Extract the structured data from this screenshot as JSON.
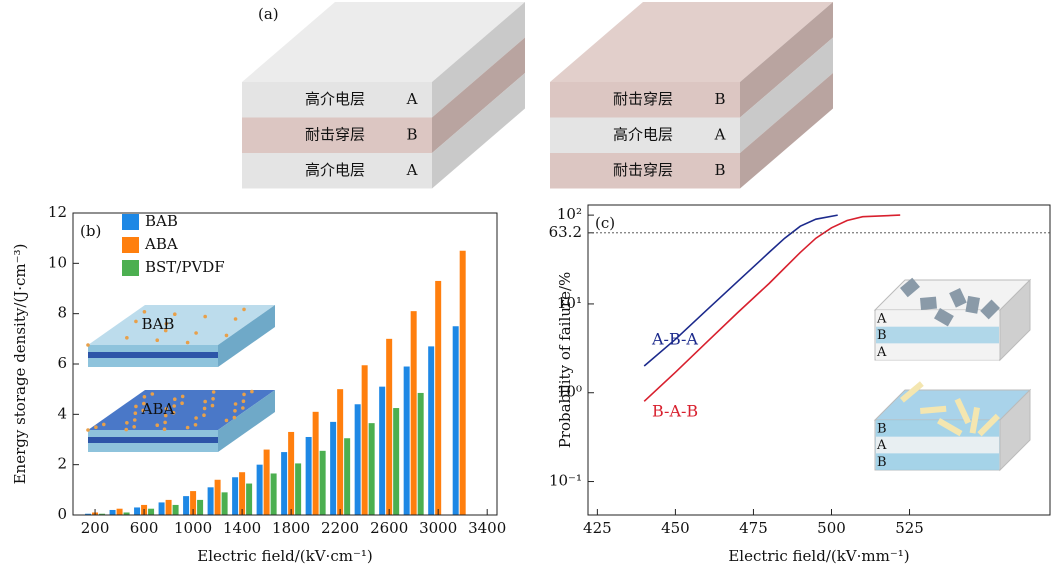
{
  "diagram": {
    "label": "(a)",
    "blocks": [
      {
        "layers": [
          {
            "name": "高介电层",
            "label": "A"
          },
          {
            "name": "耐击穿层",
            "label": "B"
          },
          {
            "name": "高介电层",
            "label": "A"
          }
        ]
      },
      {
        "layers": [
          {
            "name": "耐击穿层",
            "label": "B"
          },
          {
            "name": "高介电层",
            "label": "A"
          },
          {
            "name": "耐击穿层",
            "label": "B"
          }
        ]
      }
    ]
  },
  "chart_data": [
    {
      "type": "bar",
      "panel": "(b)",
      "x_label": "Electric field/(kV·cm⁻¹)",
      "y_label": "Energy storage density/(J·cm⁻³)",
      "x": [
        200,
        400,
        600,
        800,
        1000,
        1200,
        1400,
        1600,
        1800,
        2000,
        2200,
        2400,
        2600,
        2800,
        3000,
        3200
      ],
      "series": [
        {
          "name": "BAB",
          "color": "#1e88e5",
          "values": [
            0.05,
            0.2,
            0.3,
            0.5,
            0.75,
            1.1,
            1.5,
            2.0,
            2.5,
            3.1,
            3.7,
            4.4,
            5.1,
            5.9,
            6.7,
            7.5
          ]
        },
        {
          "name": "ABA",
          "color": "#ff7f0e",
          "values": [
            0.1,
            0.25,
            0.4,
            0.6,
            0.95,
            1.4,
            1.7,
            2.6,
            3.3,
            4.1,
            5.0,
            5.95,
            7.0,
            8.1,
            9.3,
            10.5
          ]
        },
        {
          "name": "BST/PVDF",
          "color": "#4caf50",
          "values": [
            0.05,
            0.1,
            0.25,
            0.4,
            0.6,
            0.9,
            1.25,
            1.65,
            2.05,
            2.55,
            3.05,
            3.65,
            4.25,
            4.85,
            null,
            null
          ]
        }
      ],
      "xlim": [
        20,
        3480
      ],
      "xticks": [
        200,
        600,
        1000,
        1400,
        1800,
        2200,
        2600,
        3000,
        3400
      ],
      "ylim": [
        0,
        12
      ],
      "yticks": [
        0,
        2,
        4,
        6,
        8,
        10,
        12
      ],
      "grid": false,
      "legend": "upper left",
      "inset_labels": [
        "BAB",
        "ABA"
      ]
    },
    {
      "type": "line",
      "panel": "(c)",
      "x_label": "Electric field/(kV·mm⁻¹)",
      "y_label": "Probability of failure/%",
      "series": [
        {
          "name": "A-B-A",
          "color": "#1c2a8c",
          "x": [
            440,
            450,
            460,
            470,
            480,
            485,
            490,
            495,
            502
          ],
          "values": [
            2.0,
            4.0,
            8.5,
            18,
            38,
            55,
            75,
            90,
            100
          ]
        },
        {
          "name": "B-A-B",
          "color": "#d8202e",
          "x": [
            440,
            450,
            460,
            470,
            480,
            490,
            495,
            500,
            505,
            510,
            522
          ],
          "values": [
            0.8,
            1.7,
            3.7,
            8,
            17,
            38,
            55,
            72,
            87,
            96,
            100
          ]
        }
      ],
      "xlim": [
        422,
        570
      ],
      "xticks": [
        425,
        450,
        475,
        500,
        525
      ],
      "ylim": [
        0.042,
        130
      ],
      "log_y": true,
      "yticks": [
        {
          "value": 0.1,
          "label": "10⁻¹"
        },
        {
          "value": 1,
          "label": "10⁰"
        },
        {
          "value": 10,
          "label": "10¹"
        },
        63.2,
        {
          "value": 100,
          "label": "10²"
        }
      ],
      "grid": false,
      "inset_labels": [
        [
          "A",
          "B",
          "A"
        ],
        [
          "B",
          "A",
          "B"
        ]
      ]
    }
  ]
}
